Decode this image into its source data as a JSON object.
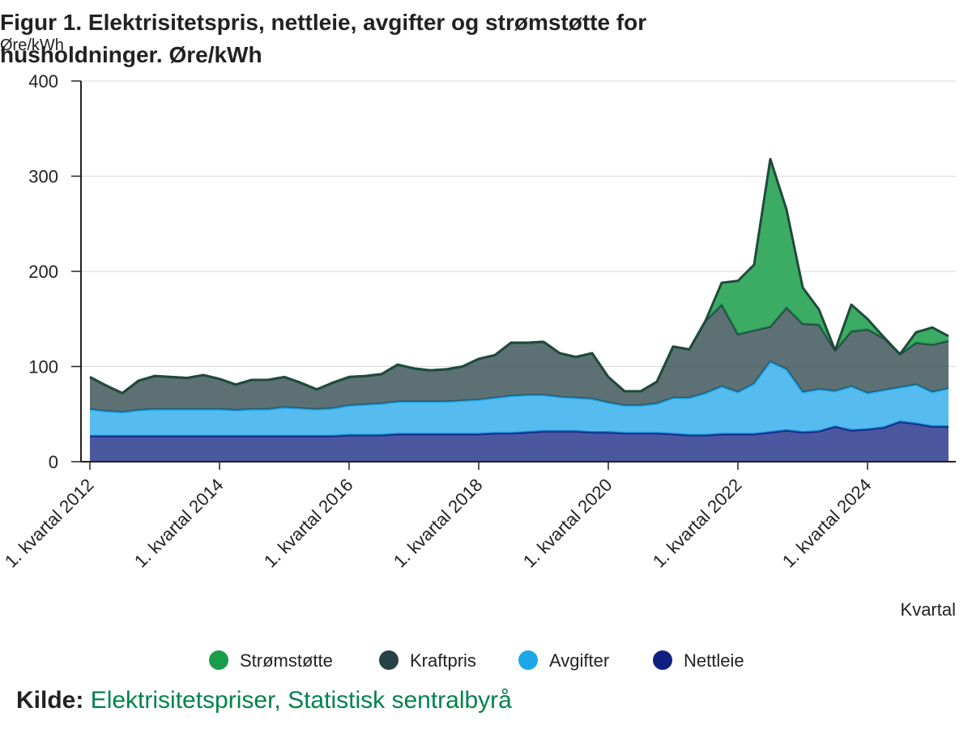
{
  "chart_data": {
    "type": "stacked-area",
    "title": "Figur 1. Elektrisitetspris, nettleie, avgifter og strømstøtte for husholdninger. Øre/kWh",
    "y_label": "Øre/kWh",
    "x_label": "Kvartal",
    "categories": [
      "1. kvartal 2012",
      null,
      null,
      null,
      null,
      null,
      null,
      null,
      "1. kvartal 2014",
      null,
      null,
      null,
      null,
      null,
      null,
      null,
      "1. kvartal 2016",
      null,
      null,
      null,
      null,
      null,
      null,
      null,
      "1. kvartal 2018",
      null,
      null,
      null,
      null,
      null,
      null,
      null,
      "1. kvartal 2020",
      null,
      null,
      null,
      null,
      null,
      null,
      null,
      "1. kvartal 2022",
      null,
      null,
      null,
      null,
      null,
      null,
      null,
      "1. kvartal 2024",
      null,
      null,
      null,
      null,
      null
    ],
    "series": [
      {
        "name": "Nettleie",
        "color": "#0f2080",
        "values": [
          27,
          27,
          27,
          27,
          27,
          27,
          27,
          27,
          27,
          27,
          27,
          27,
          27,
          27,
          27,
          27,
          28,
          28,
          28,
          29,
          29,
          29,
          29,
          29,
          29,
          30,
          30,
          31,
          32,
          32,
          32,
          31,
          31,
          30,
          30,
          30,
          29,
          28,
          28,
          29,
          29,
          29,
          31,
          33,
          31,
          32,
          37,
          33,
          34,
          36,
          42,
          40,
          37,
          37
        ]
      },
      {
        "name": "Avgifter",
        "color": "#1da6e9",
        "values": [
          28,
          26,
          25,
          27,
          28,
          28,
          28,
          28,
          28,
          27,
          28,
          28,
          30,
          29,
          28,
          29,
          31,
          32,
          33,
          34,
          34,
          34,
          34,
          35,
          36,
          37,
          39,
          39,
          38,
          36,
          35,
          35,
          31,
          29,
          29,
          31,
          38,
          39,
          44,
          50,
          44,
          53,
          74,
          64,
          42,
          44,
          37,
          46,
          38,
          39,
          36,
          41,
          36,
          40
        ]
      },
      {
        "name": "Kraftpris",
        "color": "#274247",
        "values": [
          34,
          27,
          20,
          31,
          35,
          34,
          33,
          36,
          32,
          27,
          31,
          31,
          32,
          27,
          21,
          27,
          30,
          30,
          31,
          39,
          35,
          33,
          34,
          36,
          43,
          45,
          56,
          55,
          56,
          46,
          43,
          48,
          27,
          15,
          15,
          23,
          54,
          51,
          76,
          86,
          61,
          56,
          37,
          65,
          72,
          68,
          43,
          58,
          67,
          55,
          35,
          44,
          50,
          50
        ]
      },
      {
        "name": "Strømstøtte",
        "color": "#1a9d49",
        "values": [
          0,
          0,
          0,
          0,
          0,
          0,
          0,
          0,
          0,
          0,
          0,
          0,
          0,
          0,
          0,
          0,
          0,
          0,
          0,
          0,
          0,
          0,
          0,
          0,
          0,
          0,
          0,
          0,
          0,
          0,
          0,
          0,
          0,
          0,
          0,
          0,
          0,
          0,
          0,
          23,
          56,
          69,
          176,
          103,
          38,
          16,
          0,
          28,
          11,
          1,
          0,
          11,
          18,
          5
        ]
      }
    ],
    "legend_order": [
      3,
      2,
      1,
      0
    ],
    "ylim": [
      0,
      400
    ],
    "yticks": [
      0,
      100,
      200,
      300,
      400
    ],
    "grid": true,
    "source_label": "Kilde:",
    "source": "Elektrisitetspriser, Statistisk sentralbyrå"
  }
}
